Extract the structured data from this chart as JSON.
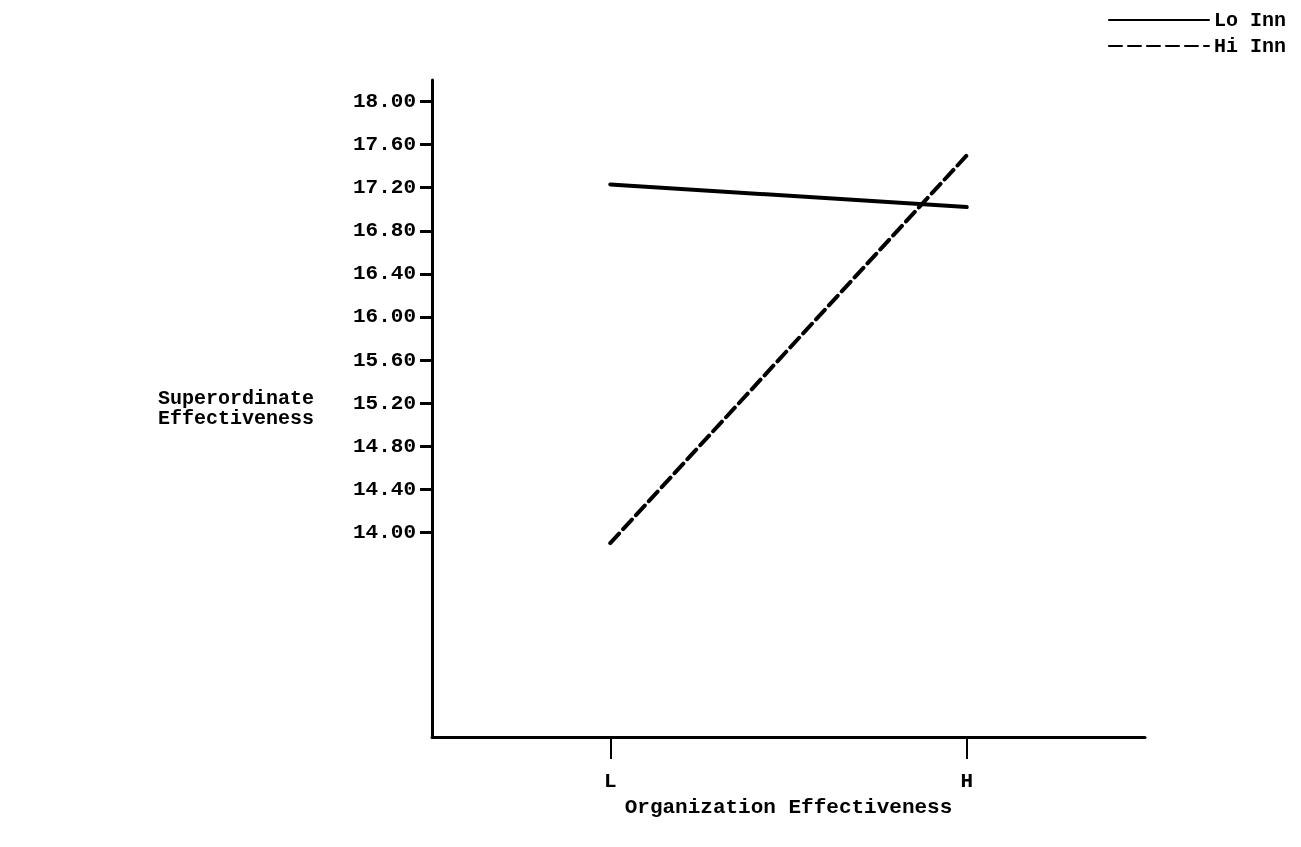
{
  "chart_data": {
    "type": "line",
    "xlabel": "Organization Effectiveness",
    "ylabel": "Superordinate\nEffectiveness",
    "categories": [
      "L",
      "H"
    ],
    "series": [
      {
        "name": "Lo Inn",
        "color": "#000000",
        "line_style": "solid",
        "values": [
          17.23,
          17.02
        ]
      },
      {
        "name": "Hi Inn",
        "color": "#000000",
        "line_style": "dashed",
        "values": [
          13.9,
          17.5
        ]
      }
    ],
    "ylim": [
      12.1,
      18.2
    ],
    "yticks": [
      {
        "value": 18,
        "label": "18.00"
      },
      {
        "value": 17.6,
        "label": "17.60"
      },
      {
        "value": 17.2,
        "label": "17.20"
      },
      {
        "value": 16.8,
        "label": "16.80"
      },
      {
        "value": 16.4,
        "label": "16.40"
      },
      {
        "value": 16,
        "label": "16.00"
      },
      {
        "value": 15.6,
        "label": "15.60"
      },
      {
        "value": 15.2,
        "label": "15.20"
      },
      {
        "value": 14.8,
        "label": "14.80"
      },
      {
        "value": 14.4,
        "label": "14.40"
      },
      {
        "value": 14,
        "label": "14.00"
      }
    ],
    "grid": false,
    "legend": "top right",
    "marker": "none"
  }
}
